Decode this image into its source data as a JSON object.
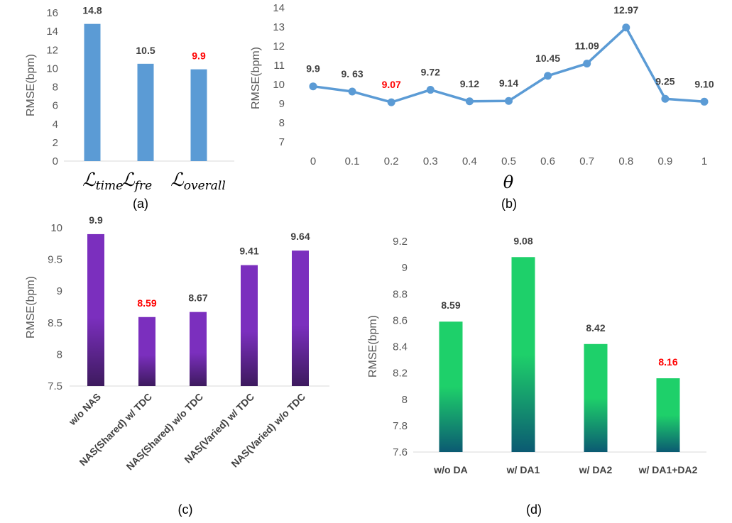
{
  "chart_data": [
    {
      "type": "bar",
      "panel_label": "(a)",
      "ylabel": "RMSE(bpm)",
      "ylim": [
        0,
        16
      ],
      "yticks": [
        "0",
        "2",
        "4",
        "6",
        "8",
        "10",
        "12",
        "14",
        "16"
      ],
      "categories": [
        "time",
        "fre",
        "overall"
      ],
      "values": [
        14.8,
        10.5,
        9.9
      ],
      "data_labels": [
        "14.8",
        "10.5",
        "9.9"
      ],
      "highlight_index": 2,
      "bar_color": "#5b9bd5",
      "grid": false
    },
    {
      "type": "line",
      "panel_label": "(b)",
      "ylabel": "RMSE(bpm)",
      "xlabel": "θ",
      "ylim": [
        7,
        14
      ],
      "yticks": [
        "7",
        "8",
        "9",
        "10",
        "11",
        "12",
        "13",
        "14"
      ],
      "x": [
        "0",
        "0.1",
        "0.2",
        "0.3",
        "0.4",
        "0.5",
        "0.6",
        "0.7",
        "0.8",
        "0.9",
        "1"
      ],
      "values": [
        9.9,
        9.63,
        9.07,
        9.72,
        9.12,
        9.14,
        10.45,
        11.09,
        12.97,
        9.25,
        9.1
      ],
      "data_labels": [
        "9.9",
        "9. 63",
        "9.07",
        "9.72",
        "9.12",
        "9.14",
        "10.45",
        "11.09",
        "12.97",
        "9.25",
        "9.10"
      ],
      "highlight_index": 2,
      "line_color": "#5b9bd5",
      "grid": false
    },
    {
      "type": "bar",
      "panel_label": "(c)",
      "ylabel": "RMSE(bpm)",
      "ylim": [
        7.5,
        10
      ],
      "yticks": [
        "7.5",
        "8",
        "8.5",
        "9",
        "9.5",
        "10"
      ],
      "categories": [
        "w/o NAS",
        "NAS(Shared) w/ TDC",
        "NAS(Shared) w/o TDC",
        "NAS(Varied) w/ TDC",
        "NAS(Varied) w/o TDC"
      ],
      "values": [
        9.9,
        8.59,
        8.67,
        9.41,
        9.64
      ],
      "data_labels": [
        "9.9",
        "8.59",
        "8.67",
        "9.41",
        "9.64"
      ],
      "highlight_index": 1,
      "gradient": [
        "#7b2fbe",
        "#3d1a5e"
      ],
      "grid": false
    },
    {
      "type": "bar",
      "panel_label": "(d)",
      "ylabel": "RMSE(bpm)",
      "ylim": [
        7.6,
        9.2
      ],
      "yticks": [
        "7.6",
        "7.8",
        "8",
        "8.2",
        "8.4",
        "8.6",
        "8.8",
        "9",
        "9.2"
      ],
      "categories": [
        "w/o DA",
        "w/ DA1",
        "w/ DA2",
        "w/ DA1+DA2"
      ],
      "values": [
        8.59,
        9.08,
        8.42,
        8.16
      ],
      "data_labels": [
        "8.59",
        "9.08",
        "8.42",
        "8.16"
      ],
      "highlight_index": 3,
      "gradient": [
        "#1ed06a",
        "#0b5a72"
      ],
      "grid": false
    }
  ]
}
